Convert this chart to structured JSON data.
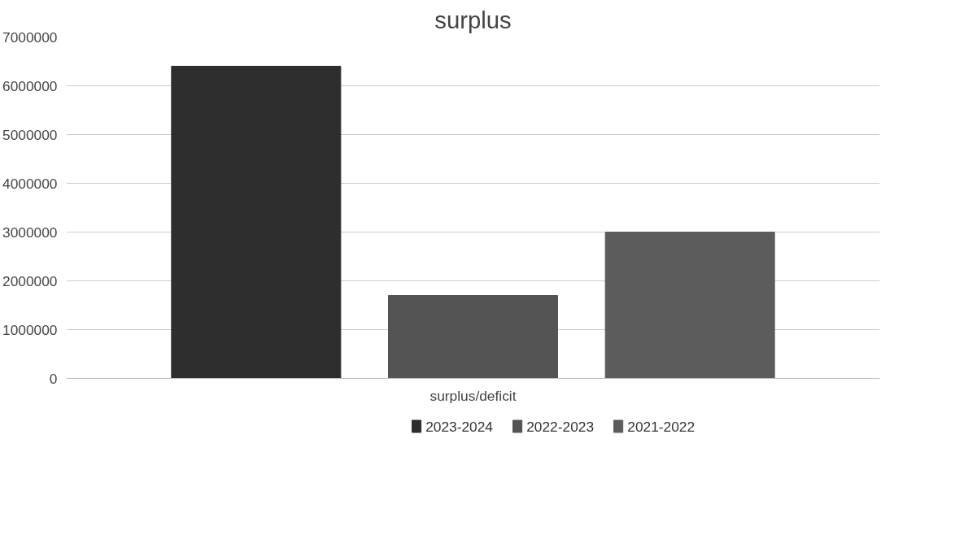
{
  "chart_data": {
    "type": "bar",
    "title": "surplus",
    "categories": [
      "surplus/deficit"
    ],
    "series": [
      {
        "name": "2023-2024",
        "color": "#2e2e2e",
        "values": [
          6400000
        ]
      },
      {
        "name": "2022-2023",
        "color": "#545454",
        "values": [
          1700000
        ]
      },
      {
        "name": "2021-2022",
        "color": "#5c5c5c",
        "values": [
          3000000
        ]
      }
    ],
    "ylim": [
      0,
      7000000
    ],
    "yticks": [
      0,
      1000000,
      2000000,
      3000000,
      4000000,
      5000000,
      6000000,
      7000000
    ],
    "grid": "y",
    "legend": "bottom"
  }
}
